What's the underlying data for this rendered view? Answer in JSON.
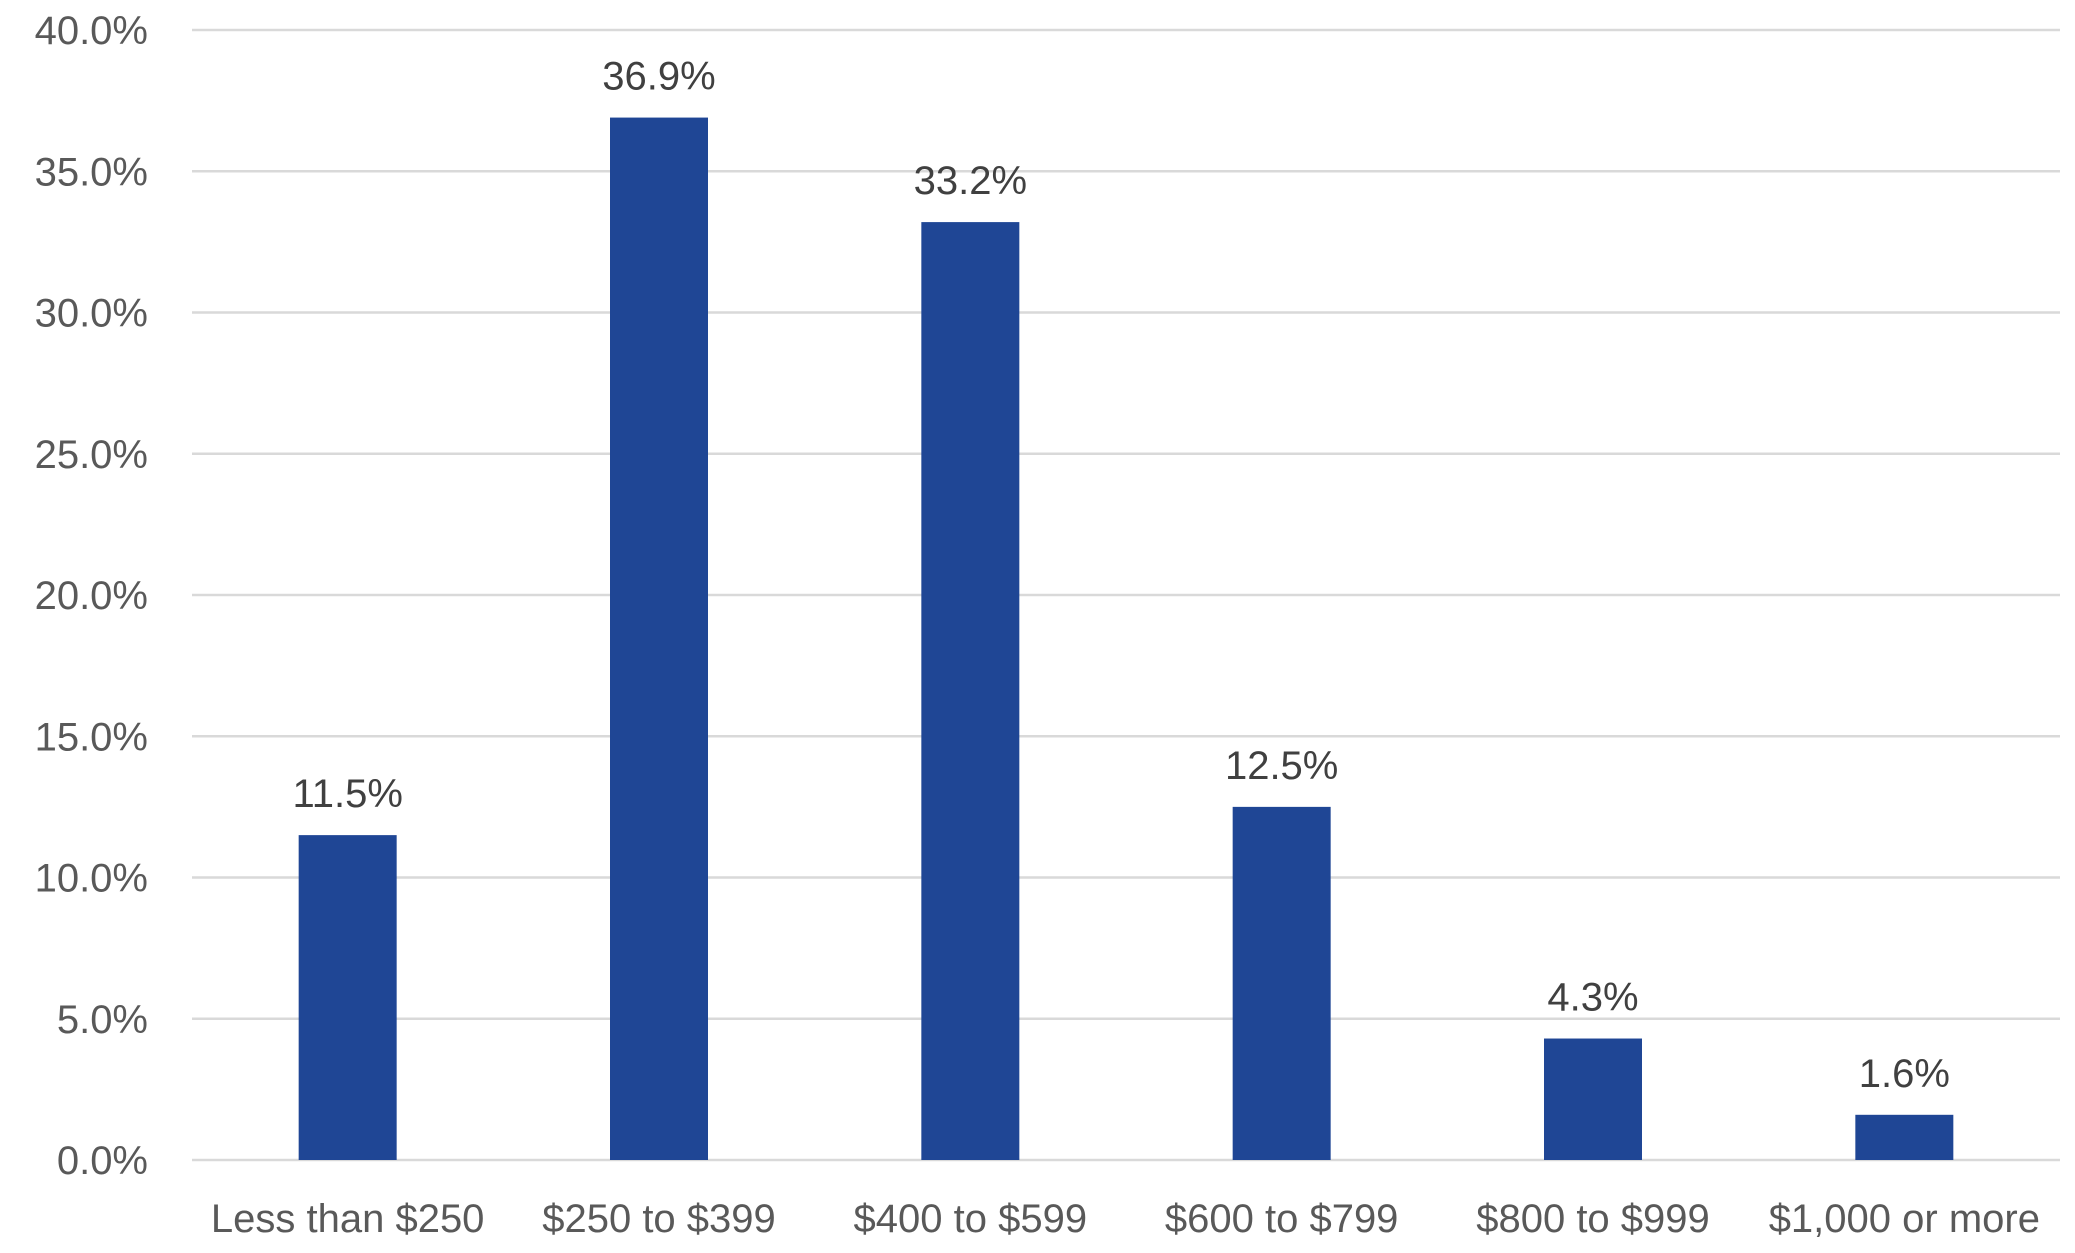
{
  "chart_data": {
    "type": "bar",
    "categories": [
      "Less than $250",
      "$250 to $399",
      "$400 to $599",
      "$600 to $799",
      "$800 to $999",
      "$1,000 or more"
    ],
    "values": [
      11.5,
      36.9,
      33.2,
      12.5,
      4.3,
      1.6
    ],
    "data_labels": [
      "11.5%",
      "36.9%",
      "33.2%",
      "12.5%",
      "4.3%",
      "1.6%"
    ],
    "ylim": [
      0,
      40
    ],
    "yticks": [
      0,
      5,
      10,
      15,
      20,
      25,
      30,
      35,
      40
    ],
    "ytick_labels": [
      "0.0%",
      "5.0%",
      "10.0%",
      "15.0%",
      "20.0%",
      "25.0%",
      "30.0%",
      "35.0%",
      "40.0%"
    ],
    "title": "",
    "xlabel": "",
    "ylabel": "",
    "grid": true,
    "legend": "none",
    "bar_color": "#1f4695"
  }
}
